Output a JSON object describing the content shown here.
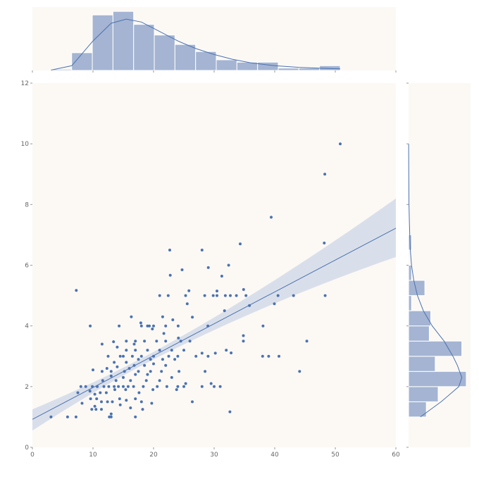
{
  "chart_data": {
    "type": "scatter",
    "title": "",
    "xlabel": "",
    "ylabel": "",
    "xlim": [
      0,
      60
    ],
    "ylim": [
      0,
      12
    ],
    "x_ticks": [
      "0",
      "10",
      "20",
      "30",
      "40",
      "50",
      "60"
    ],
    "y_ticks": [
      "0",
      "2",
      "4",
      "6",
      "8",
      "10",
      "12"
    ],
    "grid": false,
    "colors": {
      "marker": "#4c72b0",
      "hist_fill": "#a4b4d2",
      "hist_edge": "#ffffff",
      "line": "#4c72b0",
      "band": "#d9dfea",
      "panel_bg": "#fcf9f5",
      "tick_text": "#666666"
    },
    "points": [
      [
        50.81,
        10.0
      ],
      [
        48.27,
        9.0
      ],
      [
        39.42,
        7.58
      ],
      [
        48.17,
        6.73
      ],
      [
        34.3,
        6.7
      ],
      [
        22.67,
        6.5
      ],
      [
        28.0,
        6.5
      ],
      [
        32.4,
        6.0
      ],
      [
        29.03,
        5.92
      ],
      [
        24.71,
        5.85
      ],
      [
        22.76,
        5.67
      ],
      [
        31.27,
        5.64
      ],
      [
        25.84,
        5.16
      ],
      [
        30.46,
        5.15
      ],
      [
        34.86,
        5.2
      ],
      [
        7.25,
        5.17
      ],
      [
        35.26,
        5.0
      ],
      [
        40.55,
        5.0
      ],
      [
        43.11,
        5.0
      ],
      [
        48.33,
        5.0
      ],
      [
        33.68,
        5.0
      ],
      [
        32.68,
        5.0
      ],
      [
        31.85,
        5.0
      ],
      [
        29.85,
        5.0
      ],
      [
        28.44,
        5.0
      ],
      [
        25.29,
        5.0
      ],
      [
        21.01,
        5.0
      ],
      [
        22.42,
        5.0
      ],
      [
        30.46,
        5.0
      ],
      [
        25.56,
        4.73
      ],
      [
        35.83,
        4.67
      ],
      [
        39.94,
        4.73
      ],
      [
        31.71,
        4.5
      ],
      [
        26.41,
        4.29
      ],
      [
        16.32,
        4.3
      ],
      [
        21.5,
        4.3
      ],
      [
        23.17,
        4.2
      ],
      [
        18.0,
        4.0
      ],
      [
        9.55,
        4.0
      ],
      [
        14.31,
        4.0
      ],
      [
        19.0,
        4.0
      ],
      [
        20.0,
        4.0
      ],
      [
        22.0,
        4.0
      ],
      [
        24.06,
        4.0
      ],
      [
        28.97,
        4.0
      ],
      [
        38.07,
        4.0
      ],
      [
        19.3,
        4.0
      ],
      [
        17.9,
        4.1
      ],
      [
        19.8,
        3.9
      ],
      [
        21.7,
        3.75
      ],
      [
        34.83,
        3.68
      ],
      [
        34.83,
        3.5
      ],
      [
        24.1,
        3.6
      ],
      [
        26.0,
        3.5
      ],
      [
        15.5,
        3.5
      ],
      [
        17.0,
        3.5
      ],
      [
        18.5,
        3.5
      ],
      [
        20.5,
        3.5
      ],
      [
        22.0,
        3.5
      ],
      [
        24.5,
        3.5
      ],
      [
        45.3,
        3.5
      ],
      [
        11.5,
        3.4
      ],
      [
        13.4,
        3.48
      ],
      [
        16.8,
        3.4
      ],
      [
        32.8,
        3.11
      ],
      [
        32.0,
        3.2
      ],
      [
        30.2,
        3.1
      ],
      [
        28.0,
        3.1
      ],
      [
        25.0,
        3.2
      ],
      [
        23.0,
        3.2
      ],
      [
        21.0,
        3.2
      ],
      [
        19.0,
        3.2
      ],
      [
        17.0,
        3.2
      ],
      [
        15.5,
        3.2
      ],
      [
        14.0,
        3.3
      ],
      [
        38.0,
        3.0
      ],
      [
        39.0,
        3.0
      ],
      [
        40.7,
        3.0
      ],
      [
        29.0,
        3.0
      ],
      [
        27.0,
        3.0
      ],
      [
        24.0,
        3.0
      ],
      [
        22.5,
        3.0
      ],
      [
        20.0,
        3.0
      ],
      [
        18.0,
        3.0
      ],
      [
        16.5,
        3.0
      ],
      [
        15.0,
        3.0
      ],
      [
        14.5,
        3.0
      ],
      [
        12.5,
        3.0
      ],
      [
        17.5,
        2.9
      ],
      [
        19.5,
        2.9
      ],
      [
        21.5,
        2.9
      ],
      [
        23.5,
        2.9
      ],
      [
        13.5,
        2.8
      ],
      [
        15.5,
        2.8
      ],
      [
        16.8,
        2.7
      ],
      [
        18.5,
        2.7
      ],
      [
        20.0,
        2.75
      ],
      [
        22.0,
        2.7
      ],
      [
        12.3,
        2.6
      ],
      [
        14.0,
        2.65
      ],
      [
        16.0,
        2.6
      ],
      [
        10.0,
        2.55
      ],
      [
        11.5,
        2.5
      ],
      [
        13.0,
        2.5
      ],
      [
        15.2,
        2.5
      ],
      [
        17.5,
        2.5
      ],
      [
        19.5,
        2.5
      ],
      [
        21.3,
        2.5
      ],
      [
        24.2,
        2.5
      ],
      [
        28.5,
        2.5
      ],
      [
        44.1,
        2.5
      ],
      [
        13.0,
        2.35
      ],
      [
        15.0,
        2.3
      ],
      [
        17.0,
        2.4
      ],
      [
        19.0,
        2.4
      ],
      [
        23.0,
        2.3
      ],
      [
        11.6,
        2.2
      ],
      [
        13.8,
        2.2
      ],
      [
        16.2,
        2.2
      ],
      [
        18.8,
        2.2
      ],
      [
        21.0,
        2.2
      ],
      [
        25.3,
        2.1
      ],
      [
        29.5,
        2.1
      ],
      [
        8.0,
        2.0
      ],
      [
        8.8,
        2.0
      ],
      [
        9.9,
        2.0
      ],
      [
        10.7,
        2.0
      ],
      [
        11.8,
        2.0
      ],
      [
        12.6,
        2.0
      ],
      [
        13.5,
        2.0
      ],
      [
        14.2,
        2.0
      ],
      [
        15.0,
        2.0
      ],
      [
        15.8,
        2.0
      ],
      [
        16.7,
        2.0
      ],
      [
        18.3,
        2.0
      ],
      [
        20.6,
        2.0
      ],
      [
        22.2,
        2.0
      ],
      [
        24.0,
        2.0
      ],
      [
        25.0,
        2.0
      ],
      [
        28.0,
        2.0
      ],
      [
        30.0,
        2.0
      ],
      [
        31.0,
        2.0
      ],
      [
        7.5,
        1.8
      ],
      [
        9.5,
        1.85
      ],
      [
        10.3,
        1.75
      ],
      [
        11.2,
        1.8
      ],
      [
        12.2,
        1.8
      ],
      [
        13.6,
        1.9
      ],
      [
        15.4,
        1.9
      ],
      [
        17.6,
        1.8
      ],
      [
        19.9,
        1.9
      ],
      [
        23.8,
        1.9
      ],
      [
        9.6,
        1.6
      ],
      [
        10.6,
        1.6
      ],
      [
        11.4,
        1.5
      ],
      [
        12.4,
        1.5
      ],
      [
        13.2,
        1.5
      ],
      [
        14.4,
        1.6
      ],
      [
        15.5,
        1.55
      ],
      [
        17.0,
        1.6
      ],
      [
        18.0,
        1.5
      ],
      [
        19.7,
        1.45
      ],
      [
        26.4,
        1.5
      ],
      [
        8.2,
        1.45
      ],
      [
        10.3,
        1.35
      ],
      [
        9.8,
        1.25
      ],
      [
        10.5,
        1.25
      ],
      [
        11.4,
        1.25
      ],
      [
        16.2,
        1.3
      ],
      [
        18.2,
        1.25
      ],
      [
        32.6,
        1.17
      ],
      [
        13.0,
        1.1
      ],
      [
        3.07,
        1.0
      ],
      [
        5.8,
        1.0
      ],
      [
        7.2,
        1.0
      ],
      [
        12.7,
        1.0
      ],
      [
        13.0,
        1.0
      ],
      [
        17.0,
        1.0
      ],
      [
        14.5,
        1.4
      ]
    ],
    "regression": {
      "x_range": [
        0,
        60
      ],
      "line": [
        0.92,
        7.22
      ],
      "ci_lower": [
        0.55,
        6.27
      ],
      "ci_upper": [
        1.25,
        8.2
      ]
    },
    "marginal_x": {
      "bins": [
        3.07,
        6.48,
        9.89,
        13.3,
        16.71,
        20.12,
        23.53,
        26.94,
        30.35,
        33.76,
        37.17,
        40.58,
        43.99,
        47.4,
        50.81
      ],
      "counts": [
        1,
        15,
        47,
        50,
        39,
        30,
        22,
        16,
        9,
        7,
        7,
        2,
        2,
        4
      ],
      "kde": [
        [
          3.07,
          0.3
        ],
        [
          6.5,
          4.0
        ],
        [
          10.0,
          25.0
        ],
        [
          13.0,
          40.0
        ],
        [
          15.5,
          43.5
        ],
        [
          18.0,
          41.0
        ],
        [
          21.0,
          33.0
        ],
        [
          24.0,
          25.0
        ],
        [
          27.0,
          18.5
        ],
        [
          30.0,
          13.5
        ],
        [
          33.0,
          9.5
        ],
        [
          36.0,
          6.5
        ],
        [
          40.0,
          4.0
        ],
        [
          44.0,
          2.6
        ],
        [
          48.0,
          1.8
        ],
        [
          50.81,
          1.4
        ]
      ]
    },
    "marginal_y": {
      "bins": [
        1.0,
        1.5,
        2.0,
        2.5,
        3.0,
        3.5,
        4.0,
        4.5,
        5.0,
        5.5,
        6.0,
        6.5,
        7.0
      ],
      "counts": [
        12,
        20,
        39,
        18,
        36,
        14,
        15,
        2,
        11,
        2,
        0,
        2
      ],
      "kde": [
        [
          1.0,
          8.0
        ],
        [
          1.5,
          22.0
        ],
        [
          2.0,
          34.0
        ],
        [
          2.3,
          36.0
        ],
        [
          2.7,
          33.0
        ],
        [
          3.0,
          30.0
        ],
        [
          3.5,
          24.0
        ],
        [
          4.0,
          16.0
        ],
        [
          4.5,
          10.0
        ],
        [
          5.0,
          6.0
        ],
        [
          5.5,
          3.5
        ],
        [
          6.0,
          2.0
        ],
        [
          6.5,
          1.2
        ],
        [
          7.0,
          0.8
        ],
        [
          7.5,
          0.5
        ],
        [
          8.0,
          0.3
        ],
        [
          9.0,
          0.15
        ],
        [
          10.0,
          0.05
        ]
      ]
    }
  }
}
